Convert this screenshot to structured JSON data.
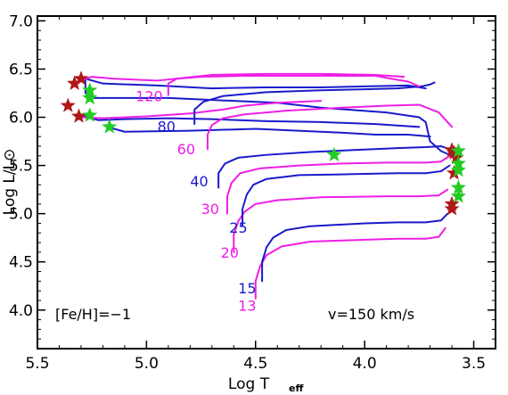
{
  "colors": {
    "blue_track": "#1a1acc",
    "magenta_track": "#ee1ee6",
    "star_red": "#b01818",
    "star_green": "#22cc22",
    "axis": "#000000"
  },
  "chart_data": {
    "type": "scatter",
    "subtype": "hr-diagram-tracks",
    "xlabel_main": "Log T",
    "xlabel_sub": "eff",
    "ylabel": "Log L/L⊙",
    "xlim": [
      5.5,
      3.4
    ],
    "ylim": [
      3.6,
      7.05
    ],
    "x_ticks": [
      5.5,
      5.0,
      4.5,
      4.0,
      3.5
    ],
    "x_tick_labels": [
      "5.5",
      "5.0",
      "4.5",
      "4.0",
      "3.5"
    ],
    "y_ticks": [
      4.0,
      4.5,
      5.0,
      5.5,
      6.0,
      6.5,
      7.0
    ],
    "y_tick_labels": [
      "4.0",
      "4.5",
      "5.0",
      "5.5",
      "6.0",
      "6.5",
      "7.0"
    ],
    "grid": false,
    "annotations": [
      {
        "text": "[Fe/H]=−1",
        "x": 5.47,
        "y": 3.8
      },
      {
        "text": "v=150 km/s",
        "x": 3.92,
        "y": 3.8
      }
    ],
    "series": [
      {
        "name": "13",
        "color": "magenta",
        "label_at": [
          4.58,
          4.05
        ],
        "points": [
          [
            4.5,
            4.12
          ],
          [
            4.5,
            4.3
          ],
          [
            4.48,
            4.45
          ],
          [
            4.45,
            4.57
          ],
          [
            4.38,
            4.66
          ],
          [
            4.25,
            4.71
          ],
          [
            4.0,
            4.73
          ],
          [
            3.85,
            4.74
          ],
          [
            3.72,
            4.74
          ],
          [
            3.66,
            4.76
          ],
          [
            3.63,
            4.85
          ]
        ]
      },
      {
        "name": "15",
        "color": "blue",
        "label_at": [
          4.58,
          4.23
        ],
        "points": [
          [
            4.47,
            4.3
          ],
          [
            4.47,
            4.5
          ],
          [
            4.45,
            4.65
          ],
          [
            4.42,
            4.75
          ],
          [
            4.36,
            4.83
          ],
          [
            4.25,
            4.87
          ],
          [
            4.0,
            4.9
          ],
          [
            3.85,
            4.91
          ],
          [
            3.72,
            4.91
          ],
          [
            3.65,
            4.93
          ],
          [
            3.62,
            5.0
          ]
        ]
      },
      {
        "name": "20",
        "color": "magenta",
        "label_at": [
          4.66,
          4.6
        ],
        "points": [
          [
            4.6,
            4.6
          ],
          [
            4.6,
            4.78
          ],
          [
            4.58,
            4.92
          ],
          [
            4.55,
            5.02
          ],
          [
            4.5,
            5.1
          ],
          [
            4.4,
            5.14
          ],
          [
            4.2,
            5.17
          ],
          [
            3.9,
            5.18
          ],
          [
            3.75,
            5.18
          ],
          [
            3.66,
            5.19
          ],
          [
            3.62,
            5.25
          ]
        ]
      },
      {
        "name": "25",
        "color": "blue",
        "label_at": [
          4.62,
          4.86
        ],
        "points": [
          [
            4.56,
            4.87
          ],
          [
            4.56,
            5.05
          ],
          [
            4.54,
            5.2
          ],
          [
            4.51,
            5.3
          ],
          [
            4.45,
            5.36
          ],
          [
            4.3,
            5.4
          ],
          [
            4.05,
            5.41
          ],
          [
            3.85,
            5.42
          ],
          [
            3.72,
            5.42
          ],
          [
            3.65,
            5.44
          ],
          [
            3.61,
            5.5
          ]
        ]
      },
      {
        "name": "30",
        "color": "magenta",
        "label_at": [
          4.75,
          5.05
        ],
        "points": [
          [
            4.63,
            5.0
          ],
          [
            4.63,
            5.18
          ],
          [
            4.61,
            5.32
          ],
          [
            4.57,
            5.42
          ],
          [
            4.48,
            5.47
          ],
          [
            4.3,
            5.5
          ],
          [
            4.1,
            5.52
          ],
          [
            3.9,
            5.53
          ],
          [
            3.72,
            5.53
          ],
          [
            3.65,
            5.54
          ],
          [
            3.61,
            5.6
          ]
        ]
      },
      {
        "name": "40",
        "color": "blue",
        "label_at": [
          4.8,
          5.34
        ],
        "points": [
          [
            4.67,
            5.27
          ],
          [
            4.67,
            5.42
          ],
          [
            4.64,
            5.52
          ],
          [
            4.58,
            5.58
          ],
          [
            4.45,
            5.61
          ],
          [
            4.25,
            5.64
          ],
          [
            4.05,
            5.66
          ],
          [
            3.85,
            5.68
          ],
          [
            3.72,
            5.69
          ],
          [
            3.65,
            5.7
          ],
          [
            3.6,
            5.66
          ]
        ]
      },
      {
        "name": "60",
        "color": "magenta",
        "label_at": [
          4.86,
          5.67
        ],
        "points": [
          [
            4.72,
            5.67
          ],
          [
            4.72,
            5.82
          ],
          [
            4.7,
            5.92
          ],
          [
            4.65,
            5.99
          ],
          [
            4.55,
            6.03
          ],
          [
            4.35,
            6.07
          ],
          [
            4.1,
            6.1
          ],
          [
            3.9,
            6.12
          ],
          [
            3.75,
            6.13
          ],
          [
            3.66,
            6.05
          ],
          [
            3.6,
            5.9
          ]
        ]
      },
      {
        "name": "80",
        "color": "blue",
        "label_at": [
          4.95,
          5.91
        ],
        "points": [
          [
            4.78,
            5.93
          ],
          [
            4.78,
            6.08
          ],
          [
            4.74,
            6.16
          ],
          [
            4.65,
            6.22
          ],
          [
            4.45,
            6.26
          ],
          [
            4.2,
            6.28
          ],
          [
            4.0,
            6.29
          ],
          [
            3.85,
            6.3
          ],
          [
            3.74,
            6.32
          ],
          [
            3.7,
            6.34
          ],
          [
            3.68,
            6.36
          ]
        ]
      },
      {
        "name": "120",
        "color": "magenta",
        "label_at": [
          5.05,
          6.22
        ],
        "points": [
          [
            4.9,
            6.23
          ],
          [
            4.9,
            6.35
          ],
          [
            4.86,
            6.4
          ],
          [
            4.75,
            6.42
          ],
          [
            4.55,
            6.43
          ],
          [
            4.3,
            6.43
          ],
          [
            4.1,
            6.43
          ],
          [
            3.95,
            6.43
          ],
          [
            3.88,
            6.4
          ],
          [
            3.8,
            6.37
          ],
          [
            3.75,
            6.32
          ]
        ]
      }
    ],
    "extra_lines": [
      {
        "color": "blue",
        "points": [
          [
            5.28,
            6.38
          ],
          [
            5.28,
            6.25
          ],
          [
            5.25,
            6.2
          ],
          [
            4.9,
            6.2
          ],
          [
            4.4,
            6.15
          ],
          [
            4.2,
            6.1
          ],
          [
            3.9,
            6.05
          ],
          [
            3.75,
            6.0
          ],
          [
            3.72,
            5.95
          ],
          [
            3.7,
            5.75
          ],
          [
            3.65,
            5.65
          ],
          [
            3.6,
            5.6
          ]
        ]
      },
      {
        "color": "blue",
        "points": [
          [
            5.18,
            5.9
          ],
          [
            5.1,
            5.85
          ],
          [
            4.8,
            5.86
          ],
          [
            4.5,
            5.88
          ],
          [
            4.1,
            5.84
          ],
          [
            3.95,
            5.82
          ],
          [
            3.8,
            5.82
          ],
          [
            3.7,
            5.8
          ]
        ]
      },
      {
        "color": "blue",
        "points": [
          [
            5.28,
            6.4
          ],
          [
            5.2,
            6.35
          ],
          [
            4.95,
            6.33
          ],
          [
            4.7,
            6.3
          ],
          [
            4.45,
            6.31
          ],
          [
            4.2,
            6.31
          ],
          [
            4.0,
            6.32
          ],
          [
            3.8,
            6.33
          ],
          [
            3.72,
            6.3
          ]
        ]
      },
      {
        "color": "magenta",
        "points": [
          [
            5.33,
            6.36
          ],
          [
            5.25,
            6.42
          ],
          [
            5.15,
            6.4
          ],
          [
            4.95,
            6.38
          ],
          [
            4.7,
            6.44
          ],
          [
            4.45,
            6.45
          ],
          [
            4.2,
            6.45
          ],
          [
            3.95,
            6.44
          ],
          [
            3.82,
            6.42
          ]
        ]
      },
      {
        "color": "blue",
        "points": [
          [
            5.3,
            6.02
          ],
          [
            5.22,
            5.97
          ],
          [
            5.1,
            5.98
          ],
          [
            4.9,
            5.99
          ],
          [
            4.7,
            5.98
          ],
          [
            4.45,
            5.96
          ],
          [
            4.2,
            5.95
          ],
          [
            3.95,
            5.93
          ],
          [
            3.75,
            5.9
          ]
        ]
      },
      {
        "color": "magenta",
        "points": [
          [
            5.3,
            6.0
          ],
          [
            5.2,
            5.99
          ],
          [
            5.0,
            6.01
          ],
          [
            4.8,
            6.04
          ],
          [
            4.65,
            6.08
          ],
          [
            4.55,
            6.12
          ],
          [
            4.4,
            6.15
          ],
          [
            4.2,
            6.17
          ]
        ]
      }
    ],
    "stars": [
      {
        "x": 5.33,
        "y": 6.35,
        "color": "red"
      },
      {
        "x": 5.3,
        "y": 6.4,
        "color": "red"
      },
      {
        "x": 5.36,
        "y": 6.12,
        "color": "red"
      },
      {
        "x": 5.31,
        "y": 6.01,
        "color": "red"
      },
      {
        "x": 5.26,
        "y": 6.28,
        "color": "green"
      },
      {
        "x": 5.26,
        "y": 6.2,
        "color": "green"
      },
      {
        "x": 5.26,
        "y": 6.02,
        "color": "green"
      },
      {
        "x": 5.17,
        "y": 5.9,
        "color": "green"
      },
      {
        "x": 4.14,
        "y": 5.61,
        "color": "green"
      },
      {
        "x": 3.6,
        "y": 5.66,
        "color": "red"
      },
      {
        "x": 3.59,
        "y": 5.63,
        "color": "red"
      },
      {
        "x": 3.58,
        "y": 5.58,
        "color": "red"
      },
      {
        "x": 3.59,
        "y": 5.42,
        "color": "red"
      },
      {
        "x": 3.6,
        "y": 5.1,
        "color": "red"
      },
      {
        "x": 3.6,
        "y": 5.05,
        "color": "red"
      },
      {
        "x": 3.57,
        "y": 5.65,
        "color": "green"
      },
      {
        "x": 3.57,
        "y": 5.52,
        "color": "green"
      },
      {
        "x": 3.57,
        "y": 5.27,
        "color": "green"
      },
      {
        "x": 3.57,
        "y": 5.18,
        "color": "green"
      },
      {
        "x": 3.57,
        "y": 5.45,
        "color": "green"
      }
    ]
  }
}
